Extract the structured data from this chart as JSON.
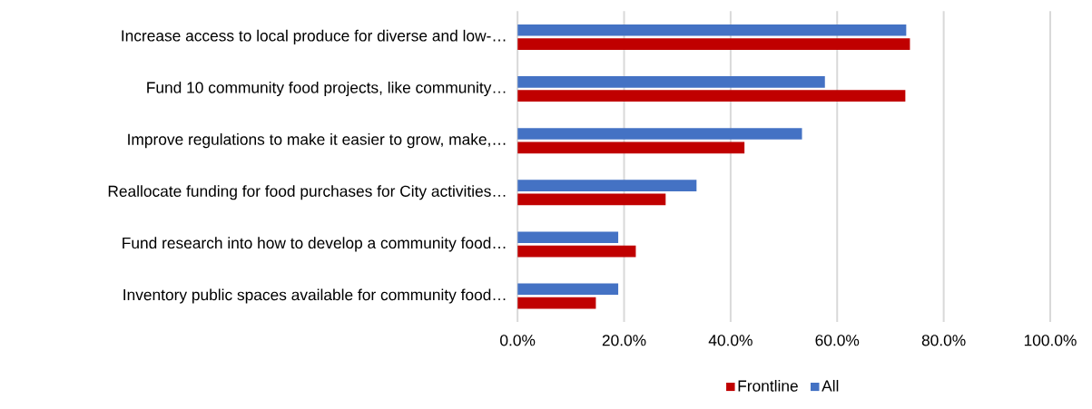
{
  "chart_data": {
    "type": "bar",
    "orientation": "horizontal",
    "categories": [
      "Increase access to local produce for diverse and low-…",
      "Fund 10 community food projects, like community…",
      "Improve regulations to make it easier to grow, make,…",
      "Reallocate funding for food purchases for City activities…",
      "Fund research into how to develop a community food…",
      "Inventory public spaces available for community food…"
    ],
    "series": [
      {
        "name": "Frontline",
        "color": "#c00000",
        "values": [
          73.7,
          72.8,
          42.6,
          27.8,
          22.2,
          14.7
        ]
      },
      {
        "name": "All",
        "color": "#4472c4",
        "values": [
          73.0,
          57.7,
          53.4,
          33.6,
          18.9,
          18.9
        ]
      }
    ],
    "xlim": [
      0,
      100
    ],
    "xticks": [
      {
        "value": 0,
        "label": "0.0%"
      },
      {
        "value": 20,
        "label": "20.0%"
      },
      {
        "value": 40,
        "label": "40.0%"
      },
      {
        "value": 60,
        "label": "60.0%"
      },
      {
        "value": 80,
        "label": "80.0%"
      },
      {
        "value": 100,
        "label": "100.0%"
      }
    ],
    "grid": "x",
    "legend": "bottom"
  }
}
